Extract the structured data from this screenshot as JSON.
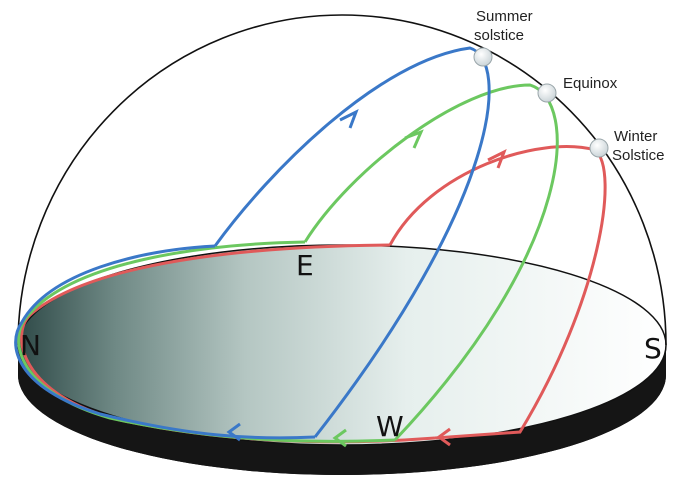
{
  "labels": {
    "summer_line1": "Summer",
    "summer_line2": "solstice",
    "equinox": "Equinox",
    "winter_line1": "Winter",
    "winter_line2": "Solstice"
  },
  "cardinals": {
    "north": "N",
    "east": "E",
    "south": "S",
    "west": "W"
  },
  "colors": {
    "summer_path": "#3a78c8",
    "equinox_path": "#6cc860",
    "winter_path": "#e05a5a",
    "dome_outline": "#111111",
    "base_disc": "#111111",
    "sun_marker": "#e8eef0"
  }
}
